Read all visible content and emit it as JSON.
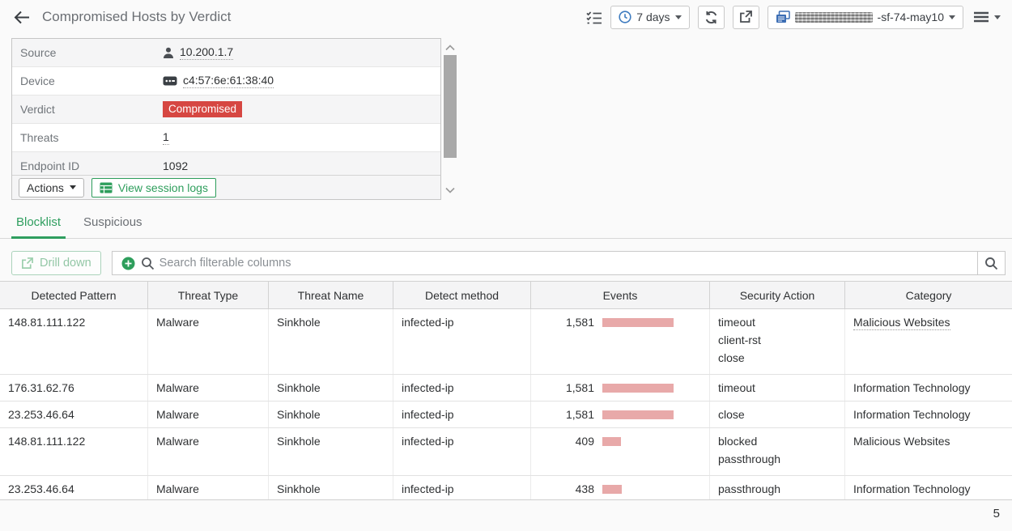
{
  "header": {
    "title": "Compromised Hosts by Verdict",
    "time_range_label": "7 days",
    "device_name_suffix": "-sf-74-may10"
  },
  "detail_panel": {
    "rows": [
      {
        "label": "Source",
        "value": "10.200.1.7",
        "icon": "user-icon",
        "underline": true
      },
      {
        "label": "Device",
        "value": "c4:57:6e:61:38:40",
        "icon": "mac-address-icon",
        "underline": true
      },
      {
        "label": "Verdict",
        "value": "Compromised",
        "badge": true
      },
      {
        "label": "Threats",
        "value": "1",
        "underline": true
      },
      {
        "label": "Endpoint ID",
        "value": "1092"
      }
    ],
    "actions_label": "Actions",
    "view_session_logs_label": "View session logs"
  },
  "tabs": [
    {
      "label": "Blocklist",
      "active": true
    },
    {
      "label": "Suspicious",
      "active": false
    }
  ],
  "filter_bar": {
    "drill_down_label": "Drill down",
    "search_placeholder": "Search filterable columns"
  },
  "table": {
    "columns": [
      "Detected Pattern",
      "Threat Type",
      "Threat Name",
      "Detect method",
      "Events",
      "Security Action",
      "Category"
    ],
    "rows": [
      {
        "detected_pattern": "148.81.111.122",
        "threat_type": "Malware",
        "threat_name": "Sinkhole",
        "detect_method": "infected-ip",
        "events": 1581,
        "events_label": "1,581",
        "security_actions": [
          "timeout",
          "client-rst",
          "close"
        ],
        "category": "Malicious Websites",
        "category_underline": true
      },
      {
        "detected_pattern": "176.31.62.76",
        "threat_type": "Malware",
        "threat_name": "Sinkhole",
        "detect_method": "infected-ip",
        "events": 1581,
        "events_label": "1,581",
        "security_actions": [
          "timeout"
        ],
        "category": "Information Technology",
        "category_underline": false
      },
      {
        "detected_pattern": "23.253.46.64",
        "threat_type": "Malware",
        "threat_name": "Sinkhole",
        "detect_method": "infected-ip",
        "events": 1581,
        "events_label": "1,581",
        "security_actions": [
          "close"
        ],
        "category": "Information Technology",
        "category_underline": false
      },
      {
        "detected_pattern": "148.81.111.122",
        "threat_type": "Malware",
        "threat_name": "Sinkhole",
        "detect_method": "infected-ip",
        "events": 409,
        "events_label": "409",
        "security_actions": [
          "blocked",
          "passthrough"
        ],
        "category": "Malicious Websites",
        "category_underline": false
      },
      {
        "detected_pattern": "23.253.46.64",
        "threat_type": "Malware",
        "threat_name": "Sinkhole",
        "detect_method": "infected-ip",
        "events": 438,
        "events_label": "438",
        "security_actions": [
          "passthrough"
        ],
        "category": "Information Technology",
        "category_underline": false
      }
    ]
  },
  "footer": {
    "page_number": "5"
  },
  "colors": {
    "accent_green": "#2e9e5c",
    "tab_green": "#2f9e5f",
    "danger_red": "#d64742",
    "event_bar_pink": "#e8a9a9"
  }
}
